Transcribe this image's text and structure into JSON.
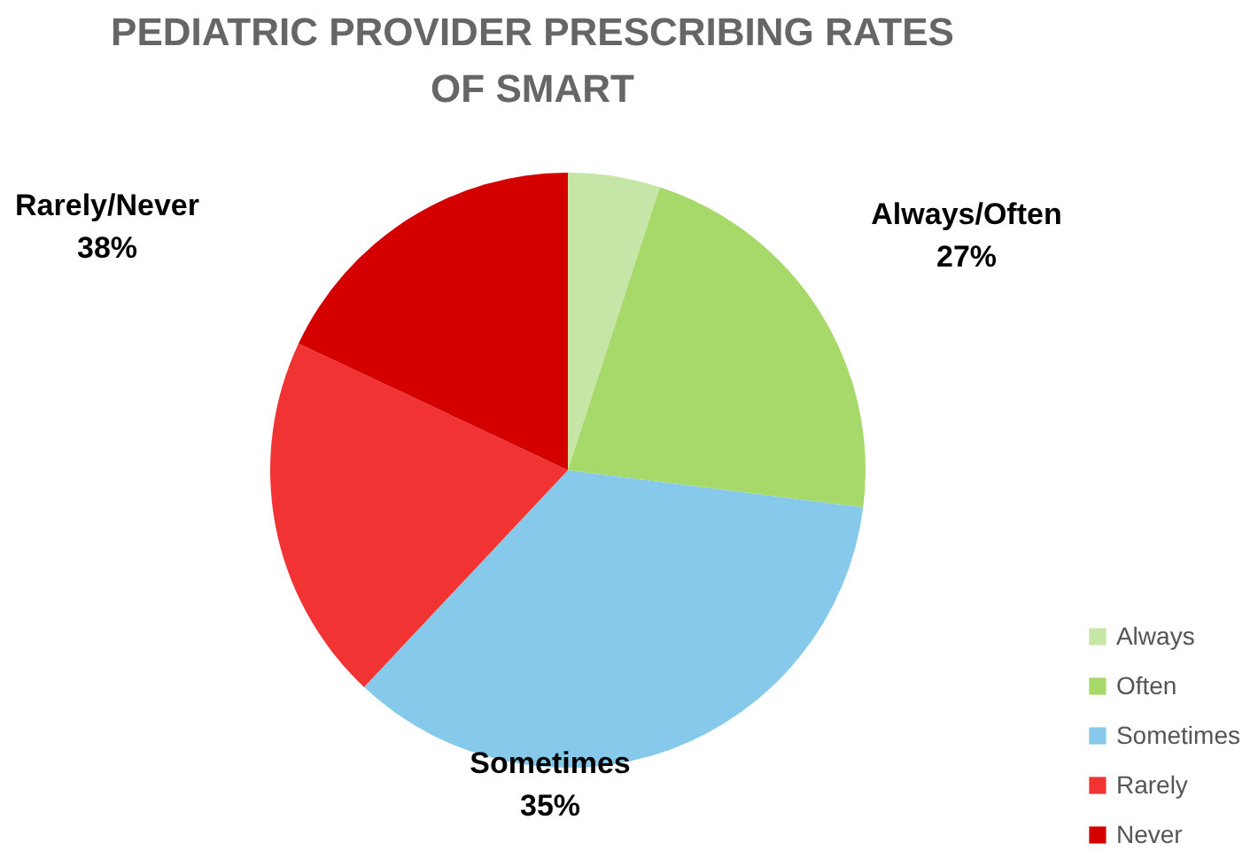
{
  "chart_data": {
    "type": "pie",
    "title": "PEDIATRIC PROVIDER PRESCRIBING RATES\nOF SMART",
    "categories": [
      "Always",
      "Often",
      "Sometimes",
      "Rarely",
      "Never"
    ],
    "values": [
      5,
      22,
      35,
      20,
      18
    ],
    "colors": [
      "#c5e6a6",
      "#a6d96a",
      "#87c9ea",
      "#f23333",
      "#d40000"
    ],
    "annotations": [
      "Always/Often\n27%",
      "Sometimes\n35%",
      "Rarely/Never\n38%"
    ],
    "legend": "bottom right"
  }
}
